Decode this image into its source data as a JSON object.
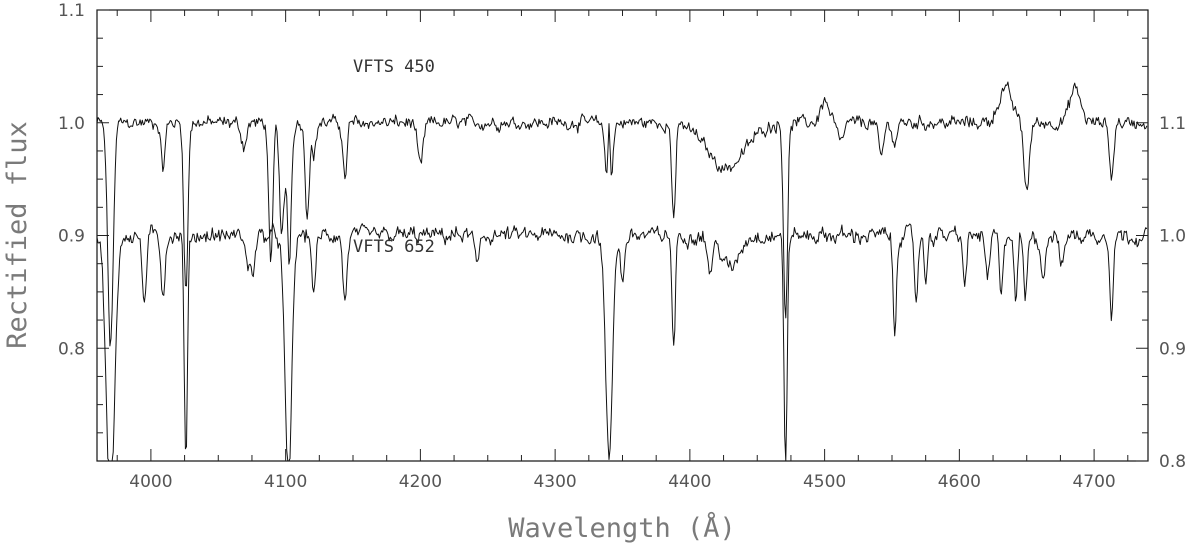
{
  "chart_data": {
    "type": "line",
    "xlabel": "Wavelength (Å)",
    "ylabel": "Rectified flux",
    "xlim": [
      3960,
      4740
    ],
    "ylim_left": [
      0.7,
      1.1
    ],
    "ylim_right": [
      0.8,
      1.2
    ],
    "x_ticks": [
      "4000",
      "4100",
      "4200",
      "4300",
      "4400",
      "4500",
      "4600",
      "4700"
    ],
    "y_ticks_left": [
      "0.8",
      "0.9",
      "1.0",
      "1.1"
    ],
    "y_ticks_right": [
      "0.8",
      "0.9",
      "1.0",
      "1.1"
    ],
    "grid": false,
    "line_color": "#111111",
    "series": [
      {
        "name": "VFTS 450",
        "axis": "left",
        "continuum": 1.0,
        "lines": [
          {
            "wavelength": 3970,
            "depth": 0.2,
            "width": 2.0
          },
          {
            "wavelength": 4009,
            "depth": 0.04,
            "width": 1.5
          },
          {
            "wavelength": 4026,
            "depth": 0.15,
            "width": 1.5
          },
          {
            "wavelength": 4069,
            "depth": 0.02,
            "width": 2.0
          },
          {
            "wavelength": 4089,
            "depth": 0.13,
            "width": 1.5
          },
          {
            "wavelength": 4097,
            "depth": 0.1,
            "width": 1.5
          },
          {
            "wavelength": 4102,
            "depth": 0.15,
            "width": 1.8
          },
          {
            "wavelength": 4116,
            "depth": 0.08,
            "width": 1.5
          },
          {
            "wavelength": 4121,
            "depth": 0.03,
            "width": 1.5
          },
          {
            "wavelength": 4144,
            "depth": 0.05,
            "width": 1.5
          },
          {
            "wavelength": 4200,
            "depth": 0.04,
            "width": 2.0
          },
          {
            "wavelength": 4340,
            "depth": 0.1,
            "width": 2.0
          },
          {
            "wavelength": 4388,
            "depth": 0.08,
            "width": 1.5
          },
          {
            "wavelength": 4427,
            "depth": 0.04,
            "width": 14.0
          },
          {
            "wavelength": 4471,
            "depth": 0.17,
            "width": 1.5
          },
          {
            "wavelength": 4512,
            "depth": 0.02,
            "width": 2.0
          },
          {
            "wavelength": 4542,
            "depth": 0.03,
            "width": 2.0
          },
          {
            "wavelength": 4552,
            "depth": 0.02,
            "width": 1.5
          },
          {
            "wavelength": 4650,
            "depth": 0.06,
            "width": 2.0
          },
          {
            "wavelength": 4713,
            "depth": 0.05,
            "width": 1.5
          }
        ],
        "emission": [
          {
            "wavelength": 4101,
            "height": 0.06,
            "width": 1.0
          },
          {
            "wavelength": 4340,
            "height": 0.1,
            "width": 1.0
          },
          {
            "wavelength": 4500,
            "height": 0.02,
            "width": 3.0
          },
          {
            "wavelength": 4634,
            "height": 0.03,
            "width": 5.0
          },
          {
            "wavelength": 4686,
            "height": 0.03,
            "width": 4.0
          }
        ]
      },
      {
        "name": "VFTS 652",
        "axis": "right",
        "continuum": 1.0,
        "lines": [
          {
            "wavelength": 3970,
            "depth": 0.25,
            "width": 3.0
          },
          {
            "wavelength": 3995,
            "depth": 0.06,
            "width": 1.5
          },
          {
            "wavelength": 4009,
            "depth": 0.05,
            "width": 1.5
          },
          {
            "wavelength": 4026,
            "depth": 0.2,
            "width": 1.2
          },
          {
            "wavelength": 4072,
            "depth": 0.03,
            "width": 1.5
          },
          {
            "wavelength": 4076,
            "depth": 0.03,
            "width": 1.5
          },
          {
            "wavelength": 4102,
            "depth": 0.22,
            "width": 2.5
          },
          {
            "wavelength": 4121,
            "depth": 0.05,
            "width": 1.5
          },
          {
            "wavelength": 4144,
            "depth": 0.06,
            "width": 1.5
          },
          {
            "wavelength": 4242,
            "depth": 0.03,
            "width": 1.5
          },
          {
            "wavelength": 4340,
            "depth": 0.2,
            "width": 2.5
          },
          {
            "wavelength": 4350,
            "depth": 0.04,
            "width": 1.5
          },
          {
            "wavelength": 4388,
            "depth": 0.1,
            "width": 1.2
          },
          {
            "wavelength": 4415,
            "depth": 0.03,
            "width": 2.0
          },
          {
            "wavelength": 4430,
            "depth": 0.03,
            "width": 6.0
          },
          {
            "wavelength": 4471,
            "depth": 0.2,
            "width": 1.2
          },
          {
            "wavelength": 4552,
            "depth": 0.09,
            "width": 1.2
          },
          {
            "wavelength": 4568,
            "depth": 0.06,
            "width": 1.2
          },
          {
            "wavelength": 4575,
            "depth": 0.04,
            "width": 1.2
          },
          {
            "wavelength": 4604,
            "depth": 0.04,
            "width": 1.5
          },
          {
            "wavelength": 4621,
            "depth": 0.04,
            "width": 1.5
          },
          {
            "wavelength": 4631,
            "depth": 0.06,
            "width": 1.2
          },
          {
            "wavelength": 4642,
            "depth": 0.06,
            "width": 1.2
          },
          {
            "wavelength": 4649,
            "depth": 0.06,
            "width": 1.2
          },
          {
            "wavelength": 4662,
            "depth": 0.04,
            "width": 1.5
          },
          {
            "wavelength": 4676,
            "depth": 0.03,
            "width": 1.5
          },
          {
            "wavelength": 4713,
            "depth": 0.07,
            "width": 1.2
          }
        ],
        "emission": []
      }
    ]
  }
}
